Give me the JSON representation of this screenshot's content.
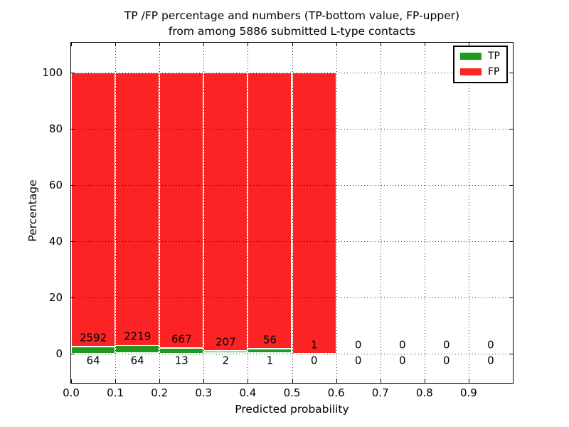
{
  "chart_data": {
    "type": "bar",
    "stacked": true,
    "title_line1": "TP /FP percentage and numbers (TP-bottom value, FP-upper)",
    "title_line2": "from among 5886 submitted L-type contacts",
    "total_contacts": 5886,
    "xlabel": "Predicted probability",
    "ylabel": "Percentage",
    "xlim": [
      0.0,
      1.0
    ],
    "ylim": [
      -10.5,
      110.5
    ],
    "xticks": [
      0.0,
      0.1,
      0.2,
      0.3,
      0.4,
      0.5,
      0.6,
      0.7,
      0.8,
      0.9
    ],
    "yticks": [
      0,
      20,
      40,
      60,
      80,
      100
    ],
    "grid": "dotted",
    "grid_color": "#000000",
    "bar_edge_color": "#ffffff",
    "bin_width": 0.1,
    "bin_starts": [
      0.0,
      0.1,
      0.2,
      0.3,
      0.4,
      0.5,
      0.6,
      0.7,
      0.8,
      0.9
    ],
    "series": [
      {
        "name": "TP",
        "color": "#1e9b1e",
        "counts": [
          64,
          64,
          13,
          2,
          1,
          0,
          0,
          0,
          0,
          0
        ]
      },
      {
        "name": "FP",
        "color": "#fb2323",
        "counts": [
          2592,
          2219,
          667,
          207,
          56,
          1,
          0,
          0,
          0,
          0
        ]
      }
    ],
    "legend": {
      "position": "upper right",
      "entries": [
        "TP",
        "FP"
      ]
    },
    "label_convention": "TP count shown below axis, FP count shown above bar bottom"
  }
}
